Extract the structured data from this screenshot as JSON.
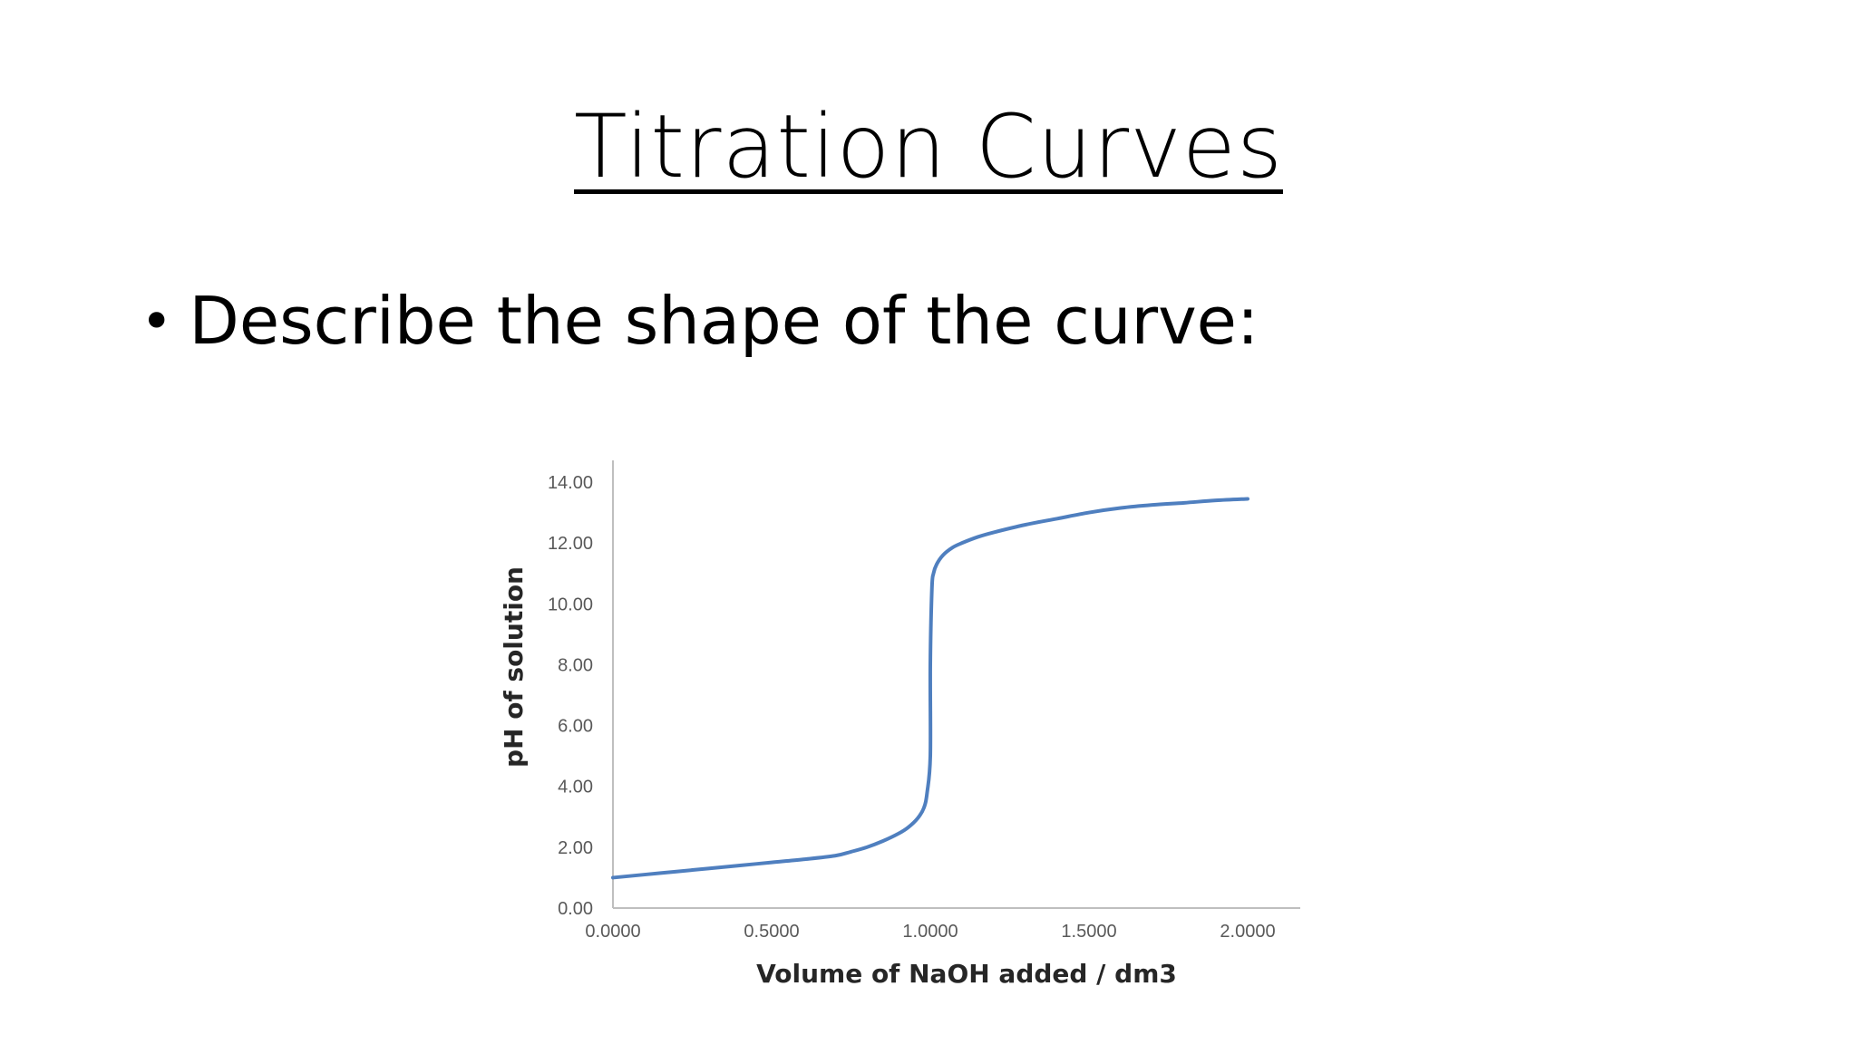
{
  "slide": {
    "title": "Titration Curves",
    "bullet": "Describe the shape of the curve:"
  },
  "chart_data": {
    "type": "line",
    "xlabel": "Volume of NaOH added / dm3",
    "ylabel": "pH of solution",
    "xlim": [
      0,
      2
    ],
    "ylim": [
      0,
      14
    ],
    "x_ticks": [
      "0.0000",
      "0.5000",
      "1.0000",
      "1.5000",
      "2.0000"
    ],
    "y_ticks": [
      "0.00",
      "2.00",
      "4.00",
      "6.00",
      "8.00",
      "10.00",
      "12.00",
      "14.00"
    ],
    "grid": false,
    "legend": "none",
    "line_color": "#4f7fbf",
    "series": [
      {
        "x": [
          0.0,
          0.1,
          0.2,
          0.3,
          0.4,
          0.5,
          0.6,
          0.7,
          0.75,
          0.8,
          0.85,
          0.9,
          0.93,
          0.96,
          0.98,
          0.99,
          1.0,
          1.0,
          1.005,
          1.01,
          1.02,
          1.04,
          1.07,
          1.1,
          1.15,
          1.2,
          1.3,
          1.4,
          1.5,
          1.6,
          1.7,
          1.8,
          1.9,
          2.0
        ],
        "y": [
          1.0,
          1.1,
          1.2,
          1.3,
          1.4,
          1.5,
          1.6,
          1.72,
          1.85,
          2.0,
          2.2,
          2.45,
          2.65,
          2.95,
          3.3,
          3.8,
          5.0,
          8.0,
          10.5,
          11.0,
          11.3,
          11.6,
          11.85,
          12.0,
          12.2,
          12.35,
          12.6,
          12.8,
          13.0,
          13.15,
          13.25,
          13.32,
          13.4,
          13.45
        ]
      }
    ]
  }
}
